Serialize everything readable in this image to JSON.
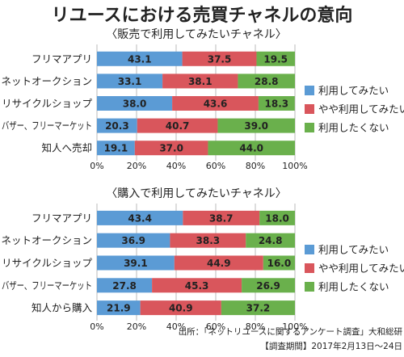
{
  "title": "リユースにおける売買チャネルの意向",
  "colors": {
    "series1": "#5b9bd5",
    "series2": "#d9565c",
    "series3": "#6ab04c",
    "grid": "#aaaaaa"
  },
  "source": {
    "line1": "出所：「ネットリユースに関するアンケート調査」大和総研",
    "line2": "【調査期間】2017年2月13日～24日"
  },
  "chart_data": [
    {
      "type": "bar",
      "orientation": "horizontal",
      "stacked": true,
      "title": "〈販売で利用してみたいチャネル〉",
      "categories": [
        "フリマアプリ",
        "ネットオークション",
        "リサイクルショップ",
        "バザー、フリーマーケット",
        "知人へ売却"
      ],
      "series": [
        {
          "name": "利用してみたい",
          "values": [
            43.1,
            33.1,
            38.0,
            20.3,
            19.1
          ]
        },
        {
          "name": "やや利用してみたい",
          "values": [
            37.5,
            38.1,
            43.6,
            40.7,
            37.0
          ]
        },
        {
          "name": "利用したくない",
          "values": [
            19.5,
            28.8,
            18.3,
            39.0,
            44.0
          ]
        }
      ],
      "xlim": [
        0,
        100
      ],
      "xticks": [
        "0%",
        "20%",
        "40%",
        "60%",
        "80%",
        "100%"
      ],
      "grid": true,
      "legend": "right"
    },
    {
      "type": "bar",
      "orientation": "horizontal",
      "stacked": true,
      "title": "〈購入で利用してみたいチャネル〉",
      "categories": [
        "フリマアプリ",
        "ネットオークション",
        "リサイクルショップ",
        "バザー、フリーマーケット",
        "知人から購入"
      ],
      "series": [
        {
          "name": "利用してみたい",
          "values": [
            43.4,
            36.9,
            39.1,
            27.8,
            21.9
          ]
        },
        {
          "name": "やや利用してみたい",
          "values": [
            38.7,
            38.3,
            44.9,
            45.3,
            40.9
          ]
        },
        {
          "name": "利用したくない",
          "values": [
            18.0,
            24.8,
            16.0,
            26.9,
            37.2
          ]
        }
      ],
      "xlim": [
        0,
        100
      ],
      "xticks": [
        "0%",
        "20%",
        "40%",
        "60%",
        "80%",
        "100%"
      ],
      "grid": true,
      "legend": "right"
    }
  ]
}
